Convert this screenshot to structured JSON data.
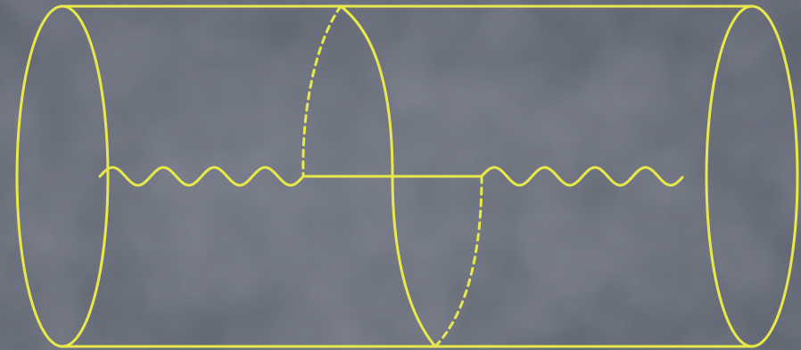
{
  "diagram": {
    "colors": {
      "background": "#5d6270",
      "background_light": "#6c717e",
      "line": "#e8e84a"
    },
    "parts": [
      "cylinder-outline",
      "left-end-cap",
      "right-end-cap",
      "left-section-cut",
      "right-section-cut",
      "left-wavy-line",
      "right-wavy-line",
      "connecting-segment"
    ]
  }
}
